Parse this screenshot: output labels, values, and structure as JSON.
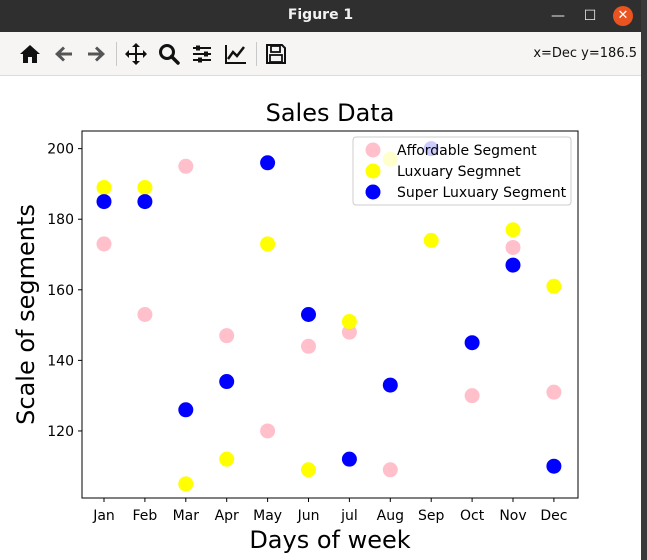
{
  "window": {
    "title": "Figure 1",
    "min_label": "—",
    "max_label": "☐",
    "close_label": "✕"
  },
  "toolbar": {
    "buttons": [
      "home-icon",
      "back-arrow-icon",
      "forward-arrow-icon",
      "pan-icon",
      "zoom-icon",
      "configure-subplots-icon",
      "edit-axis-icon",
      "save-icon"
    ],
    "coords": "x=Dec y=186.5"
  },
  "colors": {
    "affordable": "#ffc0cb",
    "luxury": "#ffff00",
    "super_luxury": "#0000ff"
  },
  "chart_data": {
    "type": "scatter",
    "title": "Sales Data",
    "xlabel": "Days of week",
    "ylabel": "Scale of segments",
    "categories": [
      "Jan",
      "Feb",
      "Mar",
      "Apr",
      "May",
      "Jun",
      "jul",
      "Aug",
      "Sep",
      "Oct",
      "Nov",
      "Dec"
    ],
    "ylim": [
      101,
      205
    ],
    "yticks": [
      120,
      140,
      160,
      180,
      200
    ],
    "grid": false,
    "legend_position": "top-right",
    "series": [
      {
        "name": "Affordable Segment",
        "color": "#ffc0cb",
        "values": [
          173,
          153,
          195,
          147,
          120,
          144,
          148,
          109,
          200,
          130,
          172,
          131
        ]
      },
      {
        "name": "Luxuary Segmnet",
        "color": "#ffff00",
        "values": [
          189,
          189,
          105,
          112,
          173,
          109,
          151,
          197,
          174,
          null,
          177,
          161
        ]
      },
      {
        "name": "Super Luxuary Segment",
        "color": "#0000ff",
        "values": [
          185,
          185,
          126,
          134,
          196,
          153,
          112,
          133,
          200,
          145,
          167,
          110
        ]
      }
    ]
  }
}
